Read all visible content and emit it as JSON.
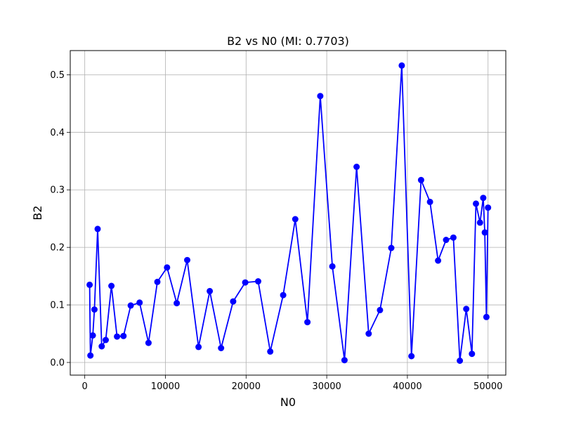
{
  "chart_data": {
    "type": "line",
    "title": "B2 vs N0 (MI: 0.7703)",
    "xlabel": "N0",
    "ylabel": "B2",
    "xlim": [
      -1800,
      52200
    ],
    "ylim": [
      -0.022,
      0.542
    ],
    "xticks": [
      0,
      10000,
      20000,
      30000,
      40000,
      50000
    ],
    "xtick_labels": [
      "0",
      "10000",
      "20000",
      "30000",
      "40000",
      "50000"
    ],
    "yticks": [
      0.0,
      0.1,
      0.2,
      0.3,
      0.4,
      0.5
    ],
    "ytick_labels": [
      "0.0",
      "0.1",
      "0.2",
      "0.3",
      "0.4",
      "0.5"
    ],
    "grid": true,
    "marker": "circle",
    "color": "#0000ff",
    "series": [
      {
        "x": [
          600,
          700,
          1000,
          1200,
          1600,
          2100,
          2600,
          3300,
          4000,
          4800,
          5700,
          6800,
          7900,
          9000,
          10200,
          11400,
          12700,
          14100,
          15500,
          16900,
          18400,
          19900,
          21500,
          23000,
          24600,
          26100,
          27600,
          29200,
          30700,
          32200,
          33700,
          35200,
          36600,
          38000,
          39300,
          40500,
          41700,
          42800,
          43800,
          44800,
          45700,
          46500,
          47300,
          48000,
          48500,
          49000,
          49400,
          49600,
          49800,
          50000
        ],
        "y": [
          0.135,
          0.012,
          0.047,
          0.092,
          0.232,
          0.028,
          0.039,
          0.133,
          0.045,
          0.046,
          0.099,
          0.104,
          0.034,
          0.14,
          0.165,
          0.103,
          0.178,
          0.027,
          0.124,
          0.025,
          0.106,
          0.139,
          0.141,
          0.019,
          0.117,
          0.249,
          0.07,
          0.463,
          0.167,
          0.004,
          0.34,
          0.05,
          0.091,
          0.199,
          0.516,
          0.011,
          0.317,
          0.279,
          0.177,
          0.213,
          0.217,
          0.003,
          0.093,
          0.015,
          0.276,
          0.243,
          0.286,
          0.226,
          0.079,
          0.269
        ]
      }
    ]
  }
}
